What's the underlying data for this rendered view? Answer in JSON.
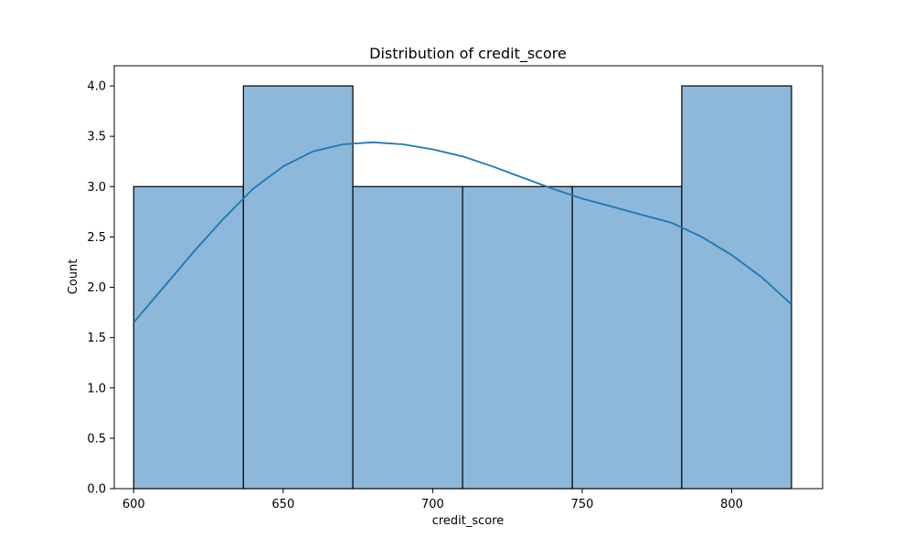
{
  "chart_data": {
    "type": "bar",
    "title": "Distribution of credit_score",
    "xlabel": "credit_score",
    "ylabel": "Count",
    "xlim": [
      593.5,
      830.4
    ],
    "ylim": [
      0,
      4.2
    ],
    "bins": [
      {
        "start": 600.0,
        "end": 636.7,
        "count": 3
      },
      {
        "start": 636.7,
        "end": 673.3,
        "count": 4
      },
      {
        "start": 673.3,
        "end": 710.0,
        "count": 3
      },
      {
        "start": 710.0,
        "end": 746.7,
        "count": 3
      },
      {
        "start": 746.7,
        "end": 783.3,
        "count": 3
      },
      {
        "start": 783.3,
        "end": 820.0,
        "count": 4
      }
    ],
    "x_ticks": [
      600,
      650,
      700,
      750,
      800
    ],
    "y_ticks": [
      "0.0",
      "0.5",
      "1.0",
      "1.5",
      "2.0",
      "2.5",
      "3.0",
      "3.5",
      "4.0"
    ],
    "kde": {
      "x": [
        600,
        610,
        620,
        630,
        640,
        650,
        660,
        670,
        680,
        690,
        700,
        710,
        720,
        730,
        740,
        750,
        760,
        770,
        780,
        790,
        800,
        810,
        820
      ],
      "y": [
        1.65,
        2.0,
        2.35,
        2.68,
        2.98,
        3.2,
        3.35,
        3.42,
        3.44,
        3.42,
        3.37,
        3.3,
        3.2,
        3.09,
        2.98,
        2.88,
        2.8,
        2.72,
        2.64,
        2.5,
        2.32,
        2.1,
        1.83
      ]
    },
    "grid": false,
    "colors": {
      "bar_fill": "#8db8da",
      "bar_edge": "#000000",
      "kde_line": "#1f77b4"
    }
  }
}
